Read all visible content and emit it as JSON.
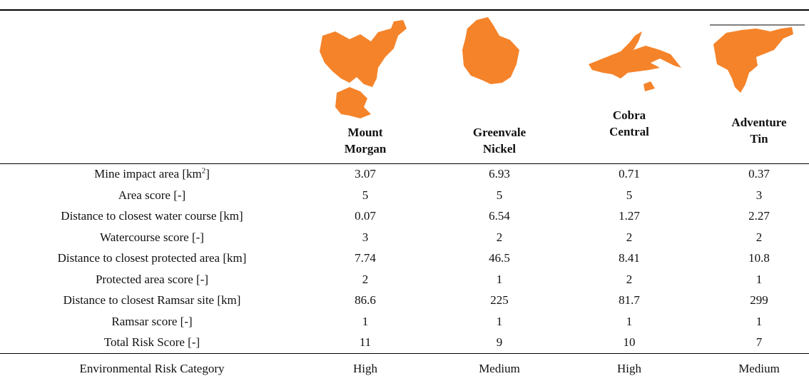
{
  "table": {
    "columns": [
      {
        "name": [
          "Mount",
          "Morgan"
        ]
      },
      {
        "name": [
          "Greenvale",
          "Nickel"
        ]
      },
      {
        "name": [
          "Cobra",
          "Central"
        ]
      },
      {
        "name": [
          "Adventure",
          "Tin"
        ]
      }
    ],
    "rows": [
      {
        "label": {
          "text": "Mine impact area [km",
          "sup": "2",
          "after": "]"
        },
        "cells": [
          "3.07",
          "6.93",
          "0.71",
          "0.37"
        ]
      },
      {
        "label": {
          "text": "Area score [-]"
        },
        "cells": [
          "5",
          "5",
          "5",
          "3"
        ]
      },
      {
        "label": {
          "text": "Distance to closest water course [km]"
        },
        "cells": [
          "0.07",
          "6.54",
          "1.27",
          "2.27"
        ]
      },
      {
        "label": {
          "text": "Watercourse score [-]"
        },
        "cells": [
          "3",
          "2",
          "2",
          "2"
        ]
      },
      {
        "label": {
          "text": "Distance to closest protected area [km]"
        },
        "cells": [
          "7.74",
          "46.5",
          "8.41",
          "10.8"
        ]
      },
      {
        "label": {
          "text": "Protected area score [-]"
        },
        "cells": [
          "2",
          "1",
          "2",
          "1"
        ]
      },
      {
        "label": {
          "text": "Distance to closest Ramsar site [km]"
        },
        "cells": [
          "86.6",
          "225",
          "81.7",
          "299"
        ]
      },
      {
        "label": {
          "text": "Ramsar score [-]"
        },
        "cells": [
          "1",
          "1",
          "1",
          "1"
        ]
      },
      {
        "label": {
          "text": "Total Risk Score [-]"
        },
        "cells": [
          "11",
          "9",
          "10",
          "7"
        ]
      }
    ],
    "footer": {
      "label": "Environmental Risk Category",
      "cells": [
        "High",
        "Medium",
        "High",
        "Medium"
      ]
    }
  }
}
